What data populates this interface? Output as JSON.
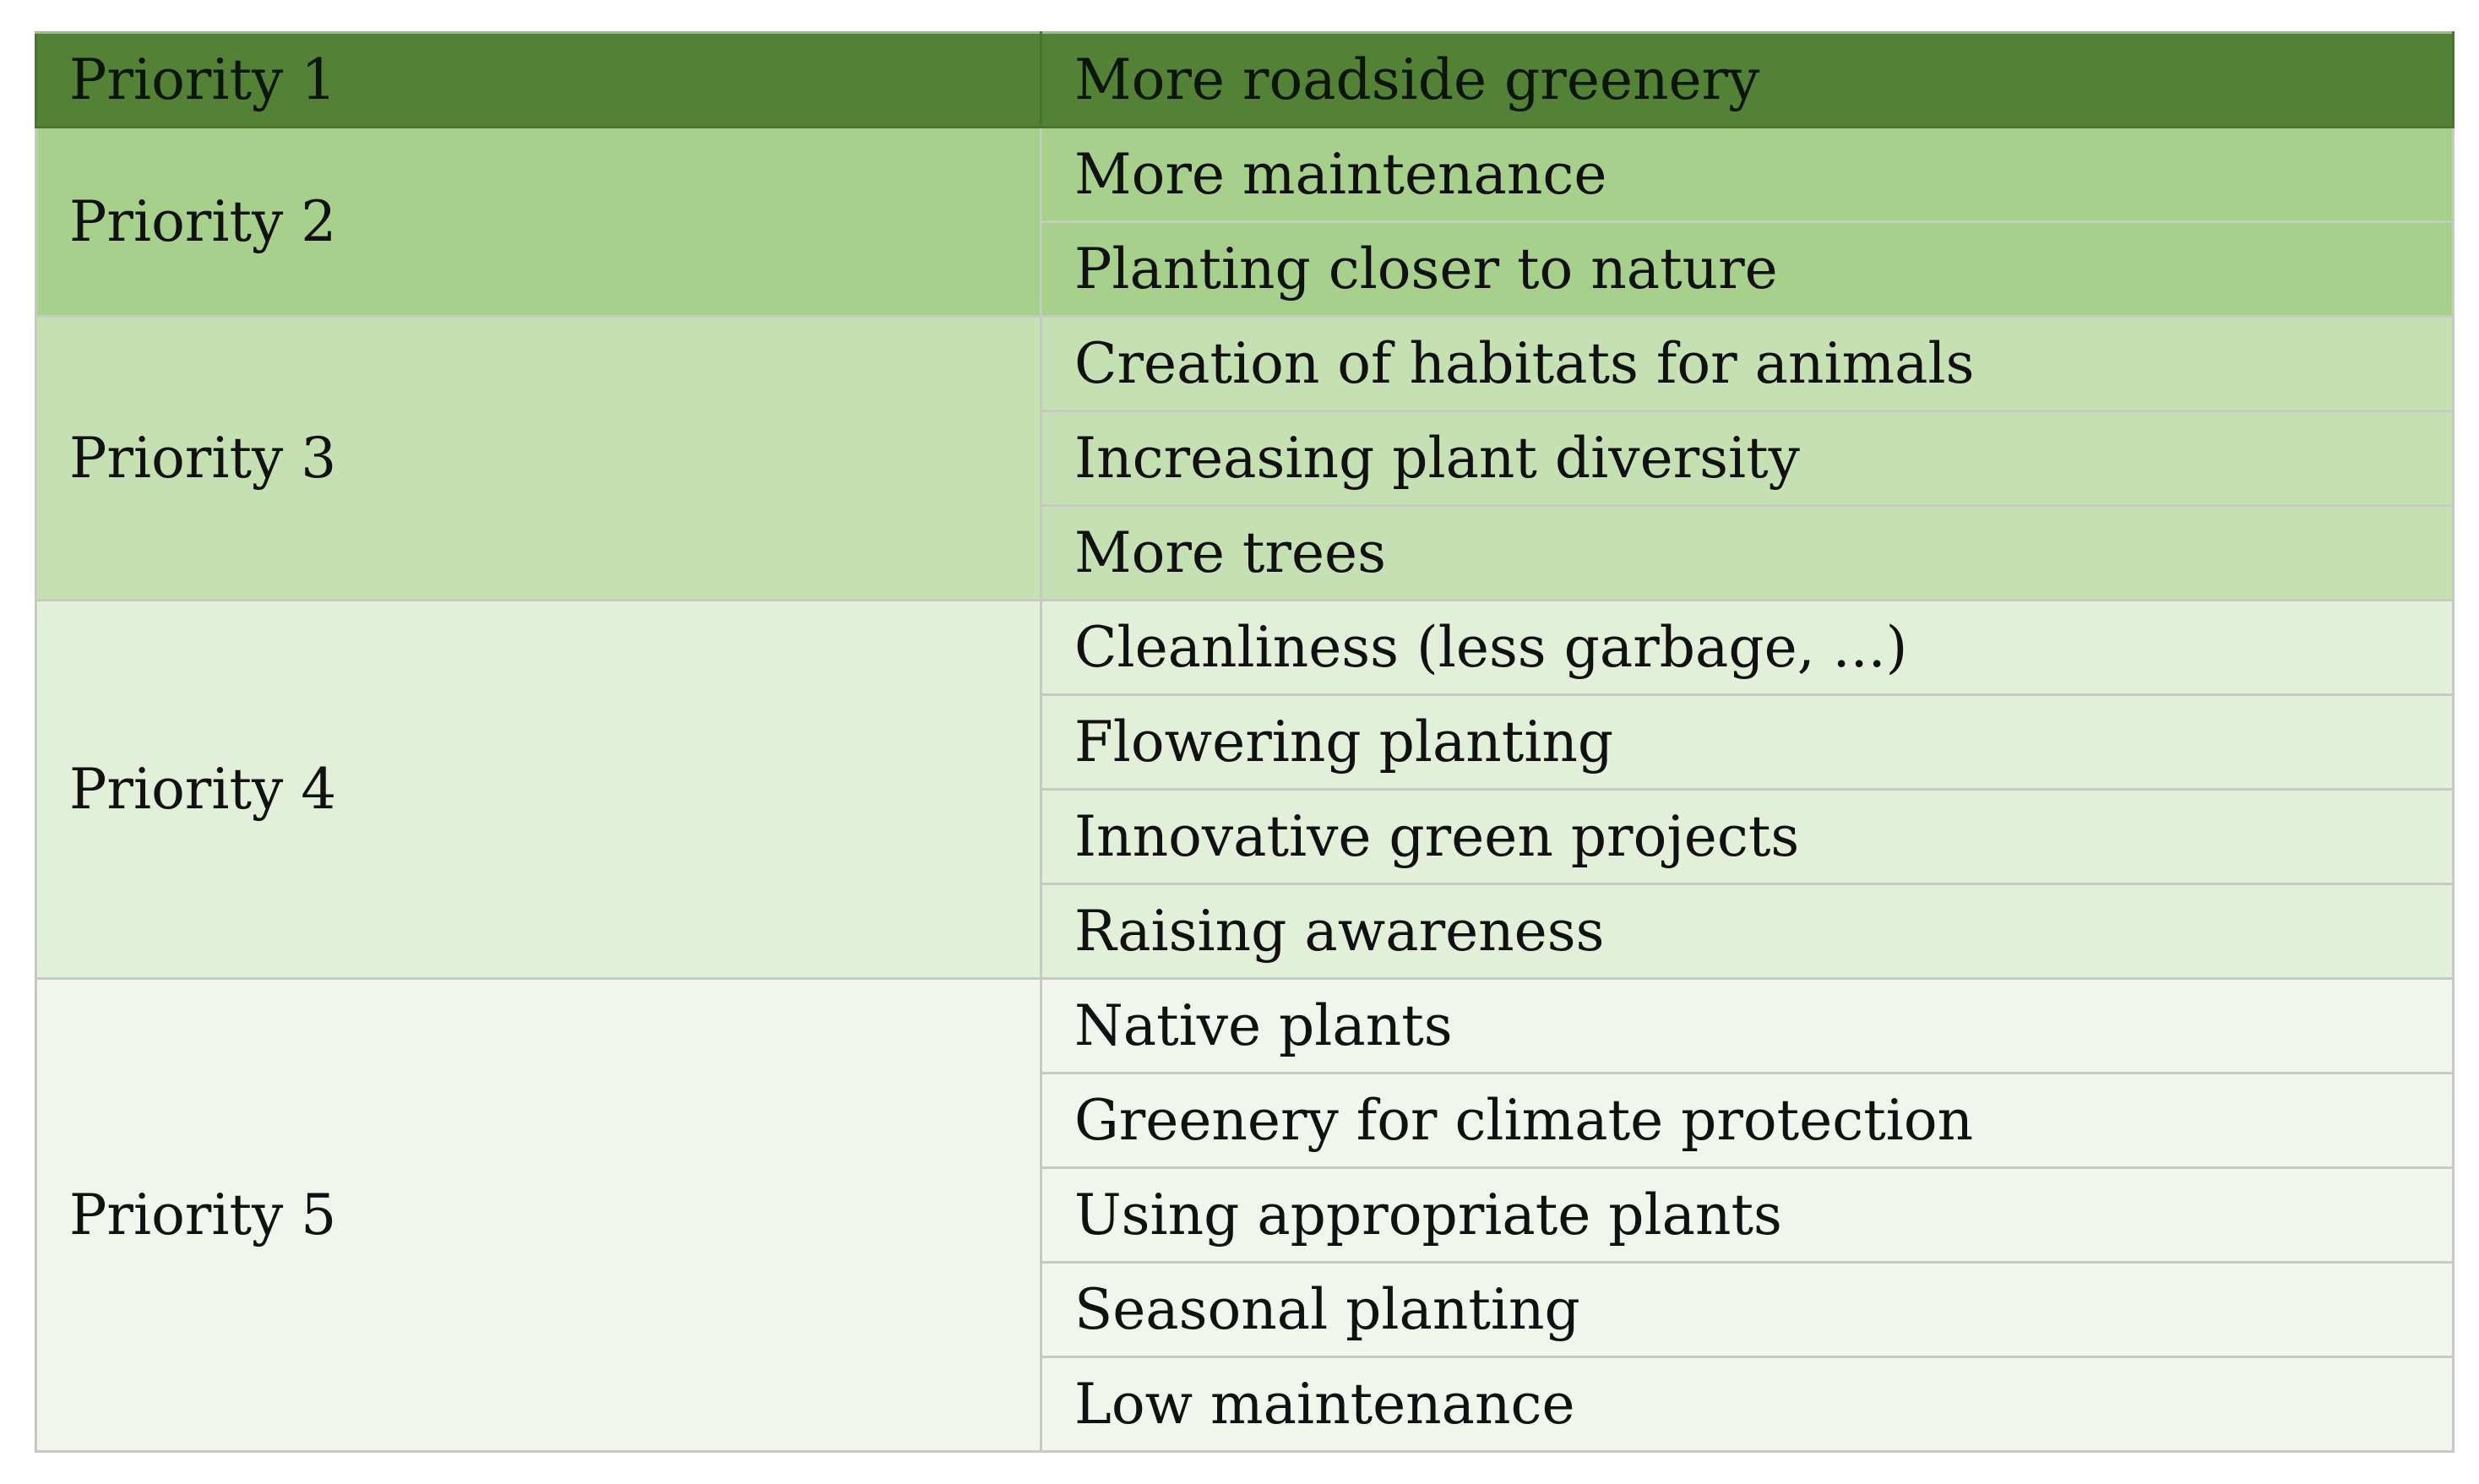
{
  "table": {
    "groups": [
      {
        "priority": "Priority 1",
        "items": [
          "More roadside greenery"
        ]
      },
      {
        "priority": "Priority 2",
        "items": [
          "More maintenance",
          "Planting closer to nature"
        ]
      },
      {
        "priority": "Priority 3",
        "items": [
          "Creation of habitats for animals",
          "Increasing plant diversity",
          "More trees"
        ]
      },
      {
        "priority": "Priority 4",
        "items": [
          "Cleanliness (less garbage, ...)",
          "Flowering planting",
          "Innovative green projects",
          "Raising awareness"
        ]
      },
      {
        "priority": "Priority 5",
        "items": [
          "Native plants",
          "Greenery for climate protection",
          "Using appropriate plants",
          "Seasonal planting",
          "Low maintenance"
        ]
      }
    ]
  },
  "colors": {
    "priority_1": "#538135",
    "priority_2": "#a8d08d",
    "priority_3": "#c5e0b3",
    "priority_4": "#e2efd9",
    "priority_5": "#f0f6ec",
    "border": "#c8c8c8"
  }
}
